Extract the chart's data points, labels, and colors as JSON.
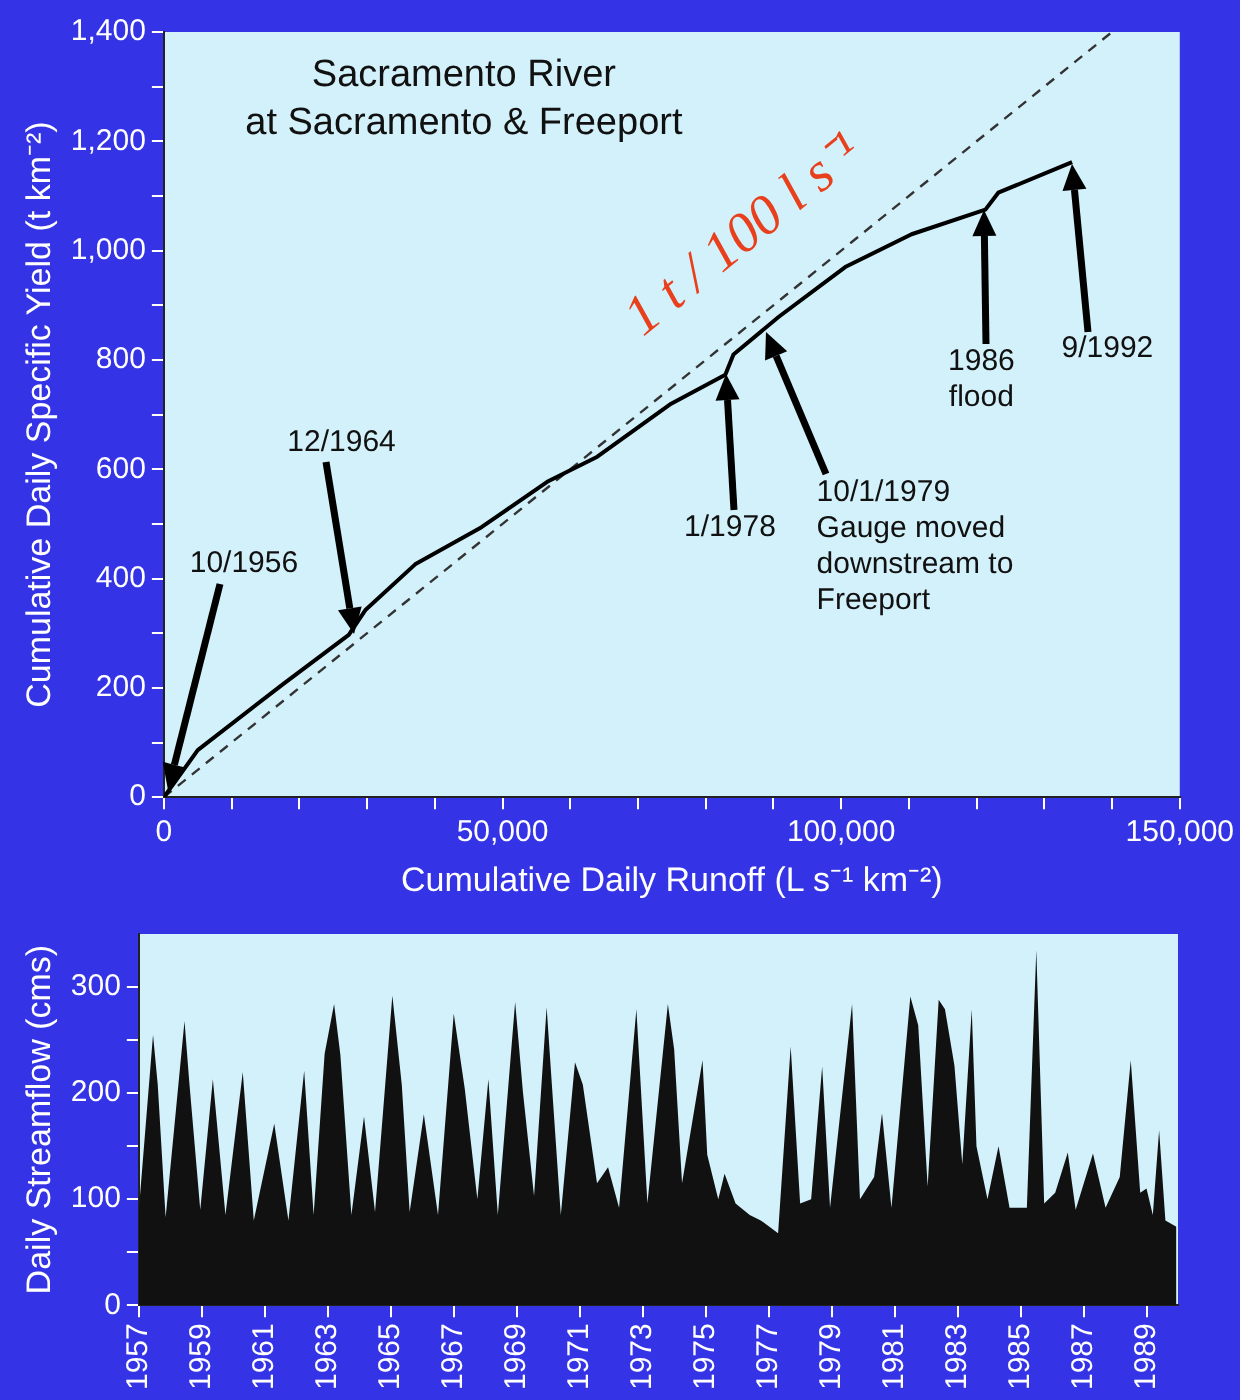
{
  "chart_data": [
    {
      "type": "line",
      "title": "Sacramento River\nat Sacramento & Freeport",
      "xlabel": "Cumulative Daily Runoff (L s⁻¹ km⁻²)",
      "ylabel": "Cumulative Daily Specific Yield (t km⁻²)",
      "xlim": [
        0,
        150000
      ],
      "xticks": [
        0,
        {
          "value": 10000,
          "label": null
        },
        {
          "value": 20000,
          "label": null
        },
        {
          "value": 30000,
          "label": null
        },
        {
          "value": 40000,
          "label": null
        },
        {
          "value": 50000,
          "label": "50,000"
        },
        {
          "value": 60000,
          "label": null
        },
        {
          "value": 70000,
          "label": null
        },
        {
          "value": 80000,
          "label": null
        },
        {
          "value": 90000,
          "label": null
        },
        {
          "value": 100000,
          "label": "100,000"
        },
        {
          "value": 110000,
          "label": null
        },
        {
          "value": 120000,
          "label": null
        },
        {
          "value": 130000,
          "label": null
        },
        {
          "value": 140000,
          "label": null
        },
        {
          "value": 150000,
          "label": "150,000"
        }
      ],
      "ylim": [
        0,
        1400
      ],
      "yticks": [
        0,
        {
          "value": 100,
          "label": null
        },
        200,
        {
          "value": 300,
          "label": null
        },
        400,
        {
          "value": 500,
          "label": null
        },
        600,
        {
          "value": 700,
          "label": null
        },
        800,
        {
          "value": 900,
          "label": null
        },
        {
          "value": 1000,
          "label": "1,000"
        },
        {
          "value": 1100,
          "label": null
        },
        {
          "value": 1200,
          "label": "1,200"
        },
        {
          "value": 1300,
          "label": null
        },
        {
          "value": 1400,
          "label": "1,400"
        }
      ],
      "grid": false,
      "legend": false,
      "series": [
        {
          "color": "#000000",
          "x": [
            0,
            5000,
            17600,
            27300,
            29800,
            37100,
            46900,
            56600,
            64000,
            74900,
            82900,
            84100,
            90800,
            100600,
            110400,
            121300,
            123200,
            134100
          ],
          "values": [
            0,
            86,
            207,
            297,
            343,
            426,
            494,
            577,
            623,
            720,
            773,
            810,
            879,
            970,
            1030,
            1075,
            1106,
            1162
          ]
        },
        {
          "name": "1 t / 100 l s⁻¹",
          "color": "#333333",
          "line_style": "dashed",
          "x": [
            0,
            140000
          ],
          "values": [
            0,
            1400
          ]
        }
      ],
      "annotations": [
        "10/1956",
        "12/1964",
        "1/1978",
        "10/1/1979\nGauge moved\ndownstream to\nFreeport",
        "1986\nflood",
        "9/1992"
      ]
    },
    {
      "type": "area",
      "ylabel": "Daily Streamflow (cms)",
      "xlim": [
        1957,
        1990
      ],
      "xticks": [
        1957,
        1959,
        1961,
        1963,
        1965,
        1967,
        1969,
        1971,
        1973,
        1975,
        1977,
        1979,
        1981,
        1983,
        1985,
        1987,
        1989
      ],
      "ylim": [
        0,
        350
      ],
      "yticks": [
        0,
        {
          "value": 50,
          "label": null
        },
        100,
        {
          "value": 150,
          "label": null
        },
        200,
        {
          "value": 250,
          "label": null
        },
        300
      ],
      "grid": false,
      "legend": false,
      "color": "#111111",
      "x": [
        1957.0,
        1957.45,
        1957.6,
        1957.85,
        1958.45,
        1958.6,
        1958.95,
        1959.35,
        1959.75,
        1960.3,
        1960.65,
        1961.3,
        1961.75,
        1962.25,
        1962.55,
        1962.9,
        1963.2,
        1963.4,
        1963.75,
        1964.15,
        1964.5,
        1965.05,
        1965.35,
        1965.6,
        1966.05,
        1966.5,
        1967.0,
        1967.35,
        1967.75,
        1968.1,
        1968.4,
        1968.95,
        1969.2,
        1969.55,
        1969.95,
        1970.1,
        1970.4,
        1970.85,
        1971.1,
        1971.55,
        1971.9,
        1972.25,
        1972.8,
        1973.15,
        1973.8,
        1974.0,
        1974.25,
        1974.9,
        1975.05,
        1975.4,
        1975.6,
        1975.95,
        1976.4,
        1976.75,
        1977.3,
        1977.7,
        1978.0,
        1978.35,
        1978.7,
        1978.95,
        1979.65,
        1979.9,
        1980.35,
        1980.6,
        1980.9,
        1981.5,
        1981.75,
        1982.05,
        1982.4,
        1982.6,
        1982.9,
        1983.15,
        1983.45,
        1983.6,
        1983.95,
        1984.3,
        1984.65,
        1985.2,
        1985.5,
        1985.75,
        1986.1,
        1986.5,
        1986.75,
        1987.3,
        1987.7,
        1988.15,
        1988.5,
        1988.8,
        1989.0,
        1989.2,
        1989.4,
        1989.6,
        1989.95
      ],
      "values": [
        90,
        255,
        208,
        83,
        268,
        211,
        90,
        213,
        85,
        220,
        80,
        171,
        80,
        221,
        85,
        237,
        284,
        236,
        85,
        178,
        88,
        292,
        208,
        88,
        180,
        85,
        275,
        204,
        100,
        213,
        85,
        286,
        200,
        103,
        281,
        215,
        85,
        229,
        208,
        115,
        130,
        92,
        279,
        96,
        284,
        241,
        115,
        231,
        142,
        100,
        124,
        96,
        85,
        80,
        68,
        244,
        96,
        100,
        225,
        92,
        284,
        100,
        121,
        181,
        92,
        291,
        264,
        112,
        288,
        279,
        226,
        133,
        279,
        150,
        100,
        150,
        92,
        92,
        335,
        96,
        106,
        144,
        90,
        143,
        92,
        121,
        231,
        106,
        110,
        85,
        165,
        80,
        74
      ]
    }
  ]
}
